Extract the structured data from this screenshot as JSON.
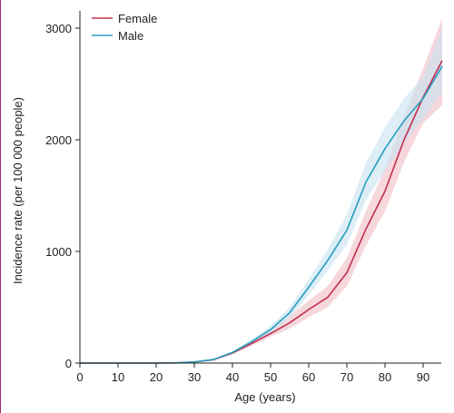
{
  "chart_data": {
    "type": "line",
    "title": "",
    "xlabel": "Age (years)",
    "ylabel": "Incidence rate (per 100 000 people)",
    "xlim": [
      0,
      95
    ],
    "ylim": [
      0,
      3100
    ],
    "x_ticks": [
      "0",
      "10",
      "20",
      "30",
      "40",
      "50",
      "60",
      "70",
      "80",
      "90"
    ],
    "y_ticks": [
      "0",
      "1000",
      "2000",
      "3000"
    ],
    "grid": false,
    "legend_position": "top-left",
    "x": [
      0,
      5,
      10,
      15,
      20,
      25,
      30,
      35,
      40,
      45,
      50,
      55,
      60,
      65,
      70,
      75,
      80,
      85,
      90,
      95
    ],
    "series": [
      {
        "name": "Female",
        "color": "#c0304f",
        "band_color": "#f0bcc4",
        "values": [
          0,
          0,
          0,
          0,
          0,
          2,
          10,
          30,
          90,
          175,
          265,
          360,
          480,
          590,
          810,
          1200,
          1540,
          2000,
          2380,
          2710
        ],
        "lower": [
          0,
          0,
          0,
          0,
          0,
          0,
          7,
          24,
          78,
          155,
          235,
          310,
          410,
          500,
          690,
          1050,
          1360,
          1800,
          2150,
          2310
        ],
        "upper": [
          0,
          0,
          0,
          0,
          0,
          4,
          13,
          37,
          102,
          195,
          300,
          420,
          560,
          690,
          940,
          1360,
          1740,
          2200,
          2640,
          3090
        ]
      },
      {
        "name": "Male",
        "color": "#2a9ec0",
        "band_color": "#c6e3f2",
        "values": [
          0,
          0,
          0,
          0,
          0,
          2,
          10,
          32,
          95,
          190,
          300,
          450,
          680,
          920,
          1190,
          1620,
          1920,
          2170,
          2370,
          2660
        ],
        "lower": [
          0,
          0,
          0,
          0,
          0,
          0,
          7,
          26,
          82,
          168,
          270,
          400,
          610,
          830,
          1060,
          1460,
          1720,
          1970,
          2190,
          2420
        ],
        "upper": [
          0,
          0,
          0,
          0,
          0,
          4,
          13,
          38,
          108,
          212,
          335,
          500,
          750,
          1020,
          1330,
          1790,
          2110,
          2370,
          2560,
          3000
        ]
      }
    ]
  }
}
